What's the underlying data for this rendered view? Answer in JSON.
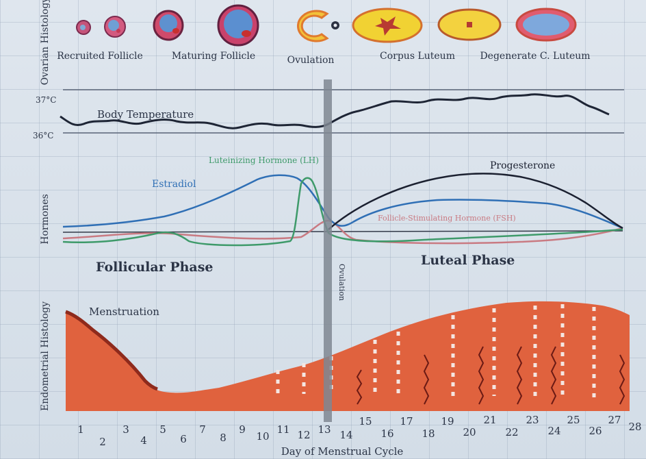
{
  "sections": {
    "ovarian": "Ovarian Histology",
    "hormones": "Hormones",
    "endometrial": "Endometrial Histology"
  },
  "ovary_stages": [
    {
      "name": "Recruited Follicle"
    },
    {
      "name": "Maturing Follicle"
    },
    {
      "name": "Ovulation"
    },
    {
      "name": "Corpus Luteum"
    },
    {
      "name": "Degenerate C. Luteum"
    }
  ],
  "temperature": {
    "label": "Body Temperature",
    "high": "37°C",
    "low": "36°C"
  },
  "hormones": {
    "lh": "Luteinizing Hormone (LH)",
    "estradiol": "Estradiol",
    "progesterone": "Progesterone",
    "fsh": "Follicle-Stimulating Hormone (FSH)"
  },
  "phases": {
    "follicular": "Follicular Phase",
    "luteal": "Luteal Phase",
    "ovulation": "Ovulation"
  },
  "menstruation": "Menstruation",
  "x_axis": {
    "label": "Day of Menstrual Cycle",
    "odd_days": [
      "1",
      "3",
      "5",
      "7",
      "9",
      "11",
      "13",
      "15",
      "17",
      "19",
      "21",
      "23",
      "25",
      "27"
    ],
    "even_days": [
      "2",
      "4",
      "6",
      "8",
      "10",
      "12",
      "14",
      "16",
      "18",
      "20",
      "22",
      "24",
      "26",
      "28"
    ]
  },
  "colors": {
    "estradiol": "#2f6fb5",
    "lh": "#3e9a6a",
    "progesterone": "#1b2030",
    "fsh": "#c97a82",
    "temperature": "#1e2535",
    "endometrium": "#e0623e",
    "endometrium_dark": "#8e2a1c"
  }
}
